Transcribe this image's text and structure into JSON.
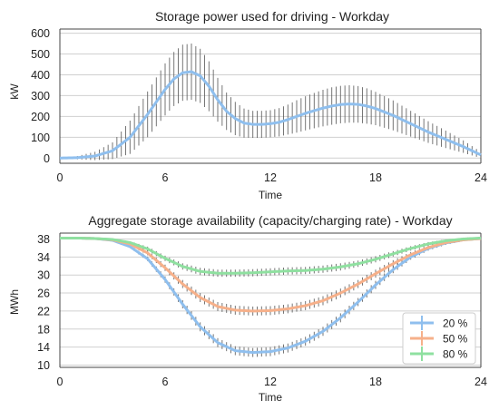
{
  "chart_data": [
    {
      "type": "line",
      "title": "Storage power used for driving - Workday",
      "xlabel": "Time",
      "ylabel": "kW",
      "xlim": [
        0,
        24
      ],
      "ylim": [
        -25,
        620
      ],
      "xticks": [
        0,
        6,
        12,
        18,
        24
      ],
      "yticks": [
        0,
        100,
        200,
        300,
        400,
        500,
        600
      ],
      "grid": "horizontal",
      "series": [
        {
          "color": "#8fbfee",
          "error_color": "#555555",
          "x": [
            0,
            1,
            2,
            3,
            4,
            5,
            6,
            6.5,
            7,
            7.5,
            8,
            8.5,
            9,
            9.5,
            10,
            10.5,
            11,
            11.5,
            12,
            12.5,
            13,
            13.5,
            14,
            14.5,
            15,
            15.5,
            16,
            16.5,
            17,
            17.5,
            18,
            19,
            20,
            21,
            22,
            23,
            24
          ],
          "y": [
            0,
            2,
            10,
            35,
            100,
            210,
            330,
            380,
            410,
            415,
            395,
            345,
            280,
            225,
            190,
            168,
            162,
            162,
            165,
            172,
            185,
            200,
            215,
            228,
            240,
            250,
            257,
            260,
            258,
            250,
            238,
            205,
            165,
            125,
            90,
            55,
            15
          ],
          "err": [
            0,
            8,
            20,
            40,
            80,
            110,
            125,
            130,
            135,
            135,
            130,
            120,
            105,
            90,
            80,
            70,
            65,
            65,
            65,
            68,
            72,
            78,
            82,
            85,
            88,
            90,
            90,
            90,
            88,
            85,
            80,
            72,
            62,
            52,
            42,
            30,
            15
          ]
        }
      ]
    },
    {
      "type": "line",
      "title": "Aggregate storage availability (capacity/charging rate) - Workday",
      "xlabel": "Time",
      "ylabel": "MWh",
      "xlim": [
        0,
        24
      ],
      "ylim": [
        9.5,
        39.3
      ],
      "xticks": [
        0,
        6,
        12,
        18,
        24
      ],
      "yticks": [
        10,
        14,
        18,
        22,
        26,
        30,
        34,
        38
      ],
      "grid": "horizontal",
      "legend": "bottom-right",
      "categories_x": [
        0,
        1,
        2,
        3,
        4,
        5,
        6,
        7,
        8,
        9,
        10,
        11,
        12,
        13,
        14,
        15,
        16,
        17,
        18,
        19,
        20,
        21,
        22,
        23,
        24
      ],
      "series": [
        {
          "name": "20 %",
          "color": "#8fbfee",
          "y": [
            38.2,
            38.2,
            38.1,
            37.7,
            36.3,
            33.6,
            29.0,
            23.5,
            18.5,
            15.0,
            13.2,
            12.8,
            13.0,
            13.8,
            15.3,
            17.5,
            20.5,
            24.0,
            27.8,
            31.2,
            34.0,
            35.9,
            37.1,
            37.8,
            38.1
          ],
          "err": [
            0.1,
            0.1,
            0.1,
            0.2,
            0.3,
            0.5,
            0.7,
            0.9,
            1.0,
            1.0,
            1.0,
            1.0,
            1.0,
            1.0,
            1.0,
            1.0,
            1.0,
            0.9,
            0.9,
            0.8,
            0.6,
            0.5,
            0.4,
            0.3,
            0.2
          ]
        },
        {
          "name": "50 %",
          "color": "#f6b08a",
          "y": [
            38.2,
            38.2,
            38.1,
            37.8,
            36.9,
            34.9,
            31.6,
            28.0,
            25.0,
            23.0,
            22.2,
            22.0,
            22.1,
            22.5,
            23.2,
            24.3,
            26.0,
            28.0,
            30.3,
            32.5,
            34.5,
            36.1,
            37.2,
            37.8,
            38.1
          ],
          "err": [
            0.1,
            0.1,
            0.1,
            0.2,
            0.3,
            0.5,
            0.7,
            0.9,
            1.0,
            1.0,
            1.0,
            1.0,
            1.0,
            1.0,
            1.0,
            1.0,
            1.0,
            0.9,
            0.9,
            0.8,
            0.6,
            0.5,
            0.4,
            0.3,
            0.2
          ]
        },
        {
          "name": "80 %",
          "color": "#8fe0a0",
          "y": [
            38.2,
            38.2,
            38.1,
            37.9,
            37.2,
            35.8,
            33.7,
            31.9,
            30.8,
            30.4,
            30.4,
            30.5,
            30.7,
            30.9,
            31.0,
            31.3,
            31.8,
            32.5,
            33.5,
            34.7,
            35.9,
            36.9,
            37.6,
            38.0,
            38.2
          ],
          "err": [
            0.1,
            0.1,
            0.1,
            0.2,
            0.3,
            0.5,
            0.6,
            0.7,
            0.8,
            0.8,
            0.8,
            0.8,
            0.8,
            0.8,
            0.8,
            0.8,
            0.8,
            0.7,
            0.7,
            0.6,
            0.5,
            0.4,
            0.3,
            0.3,
            0.2
          ]
        }
      ]
    }
  ]
}
